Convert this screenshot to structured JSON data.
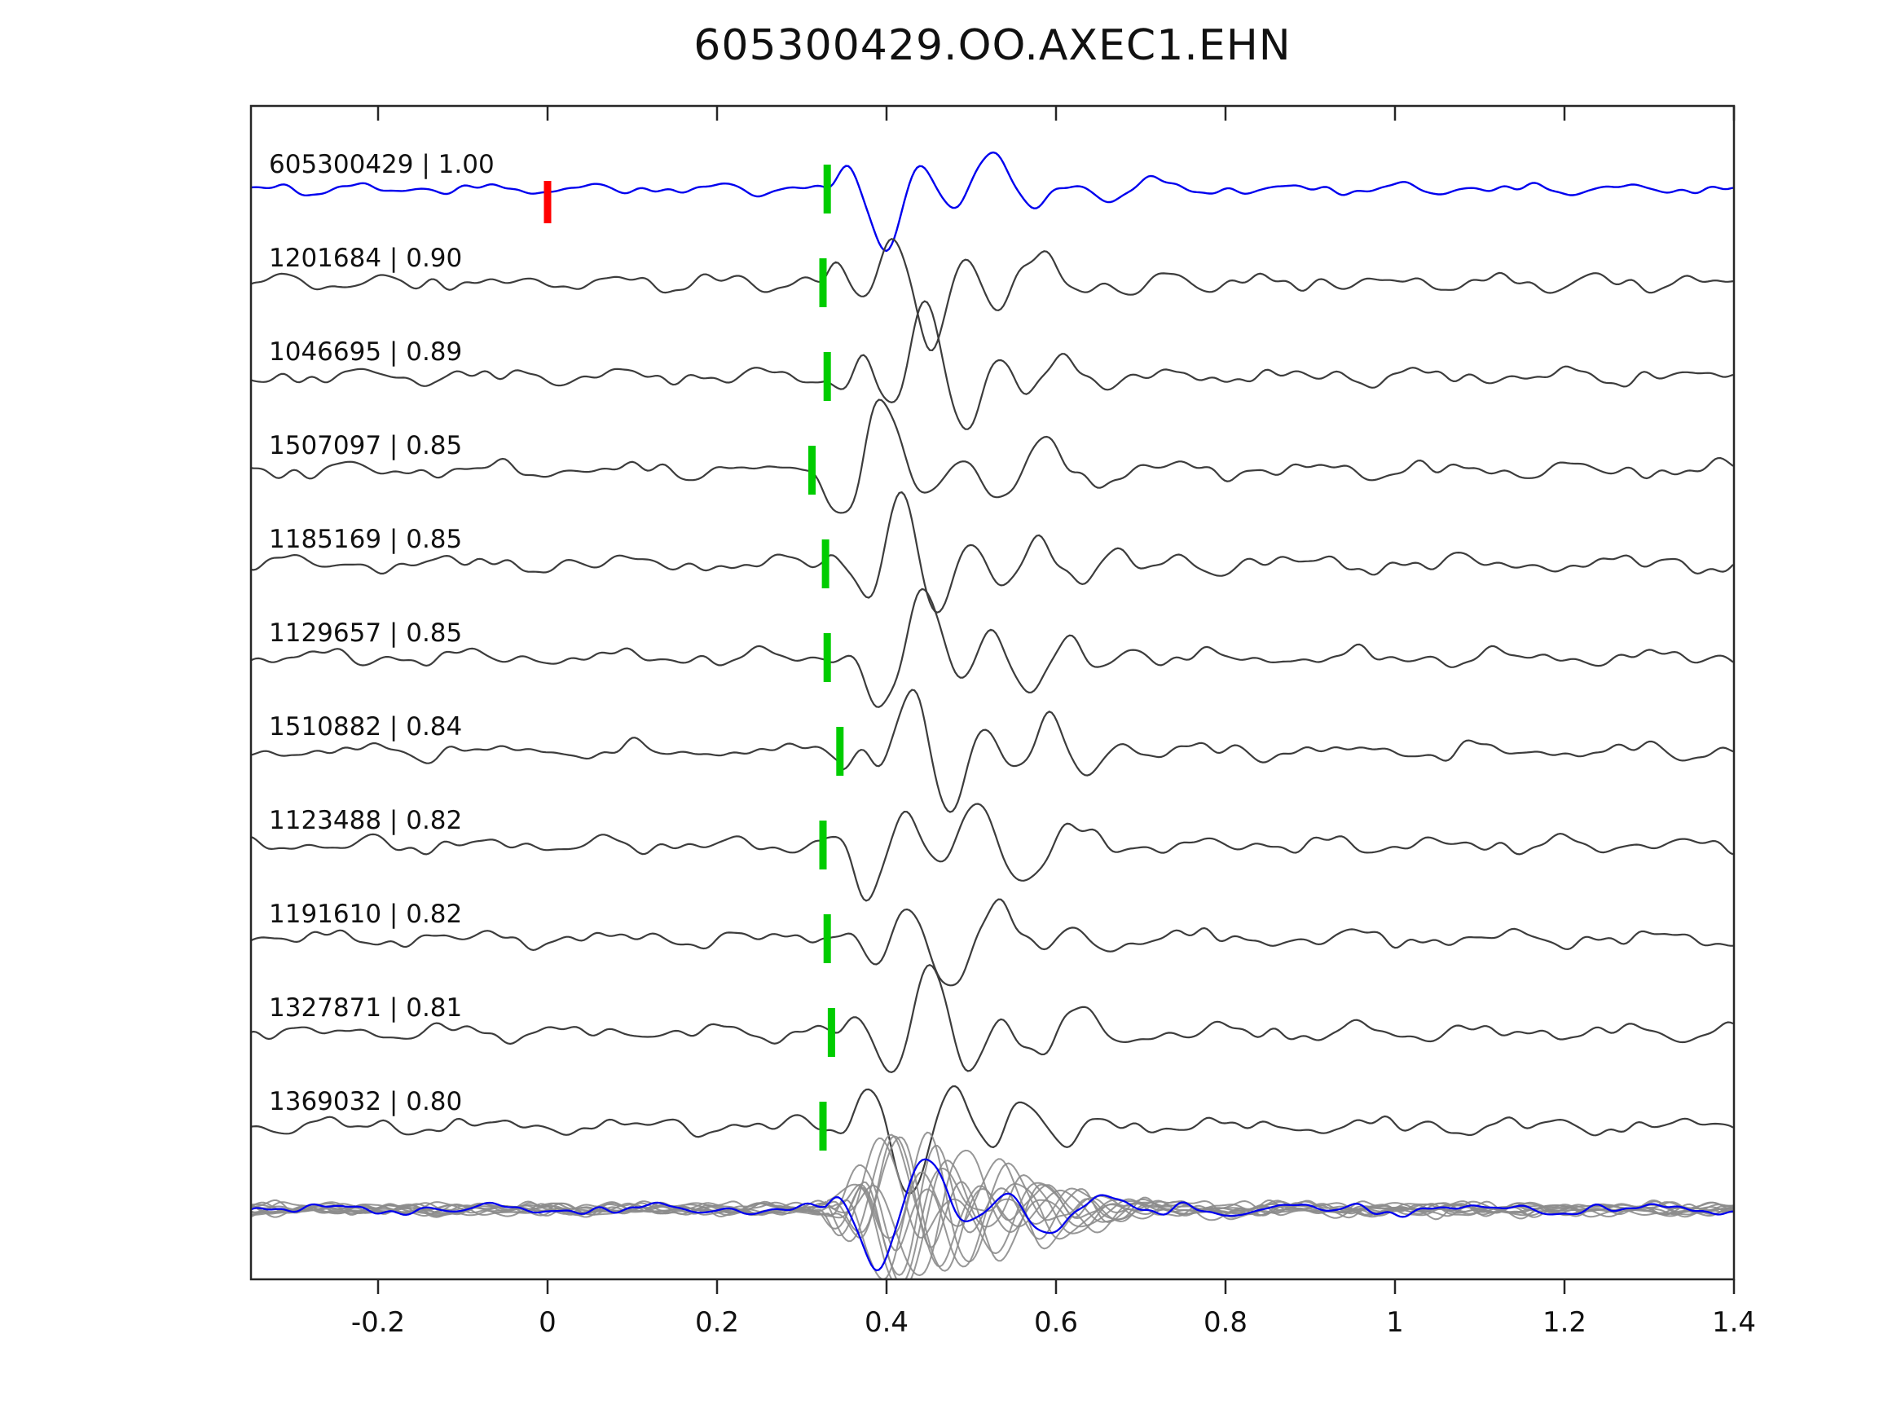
{
  "title": "605300429.OO.AXEC1.EHN",
  "chart_data": {
    "type": "line",
    "title": "605300429.OO.AXEC1.EHN",
    "xlabel": "",
    "ylabel": "",
    "xlim": [
      -0.35,
      1.4
    ],
    "x_ticks": [
      -0.2,
      0,
      0.2,
      0.4,
      0.6,
      0.8,
      1,
      1.2,
      1.4
    ],
    "x_tick_labels": [
      "-0.2",
      "0",
      "0.2",
      "0.4",
      "0.6",
      "0.8",
      "1",
      "1.2",
      "1.4"
    ],
    "grid": false,
    "legend": false,
    "colors": {
      "template_trace": "#0000ee",
      "detection_trace": "#3c3c3c",
      "overlay_trace": "#8c8c8c",
      "pick_marker": "#00cc00",
      "template_marker": "#ff0000",
      "frame": "#262626",
      "text": "#111111"
    },
    "traces": [
      {
        "label": "605300429 | 1.00",
        "id": "605300429",
        "correlation": "1.00",
        "pick_time": 0.33,
        "is_template": true,
        "template_marker_time": 0.0
      },
      {
        "label": "1201684 | 0.90",
        "id": "1201684",
        "correlation": "0.90",
        "pick_time": 0.325,
        "is_template": false
      },
      {
        "label": "1046695 | 0.89",
        "id": "1046695",
        "correlation": "0.89",
        "pick_time": 0.33,
        "is_template": false
      },
      {
        "label": "1507097 | 0.85",
        "id": "1507097",
        "correlation": "0.85",
        "pick_time": 0.312,
        "is_template": false
      },
      {
        "label": "1185169 | 0.85",
        "id": "1185169",
        "correlation": "0.85",
        "pick_time": 0.328,
        "is_template": false
      },
      {
        "label": "1129657 | 0.85",
        "id": "1129657",
        "correlation": "0.85",
        "pick_time": 0.33,
        "is_template": false
      },
      {
        "label": "1510882 | 0.84",
        "id": "1510882",
        "correlation": "0.84",
        "pick_time": 0.345,
        "is_template": false
      },
      {
        "label": "1123488 | 0.82",
        "id": "1123488",
        "correlation": "0.82",
        "pick_time": 0.325,
        "is_template": false
      },
      {
        "label": "1191610 | 0.82",
        "id": "1191610",
        "correlation": "0.82",
        "pick_time": 0.33,
        "is_template": false
      },
      {
        "label": "1327871 | 0.81",
        "id": "1327871",
        "correlation": "0.81",
        "pick_time": 0.335,
        "is_template": false
      },
      {
        "label": "1369032 | 0.80",
        "id": "1369032",
        "correlation": "0.80",
        "pick_time": 0.325,
        "is_template": false
      }
    ],
    "overlay_stack": {
      "description": "aligned superposition of all detections with template",
      "gray_trace_count": 11,
      "blue_trace_count": 1,
      "pick_time": 0.33
    }
  }
}
